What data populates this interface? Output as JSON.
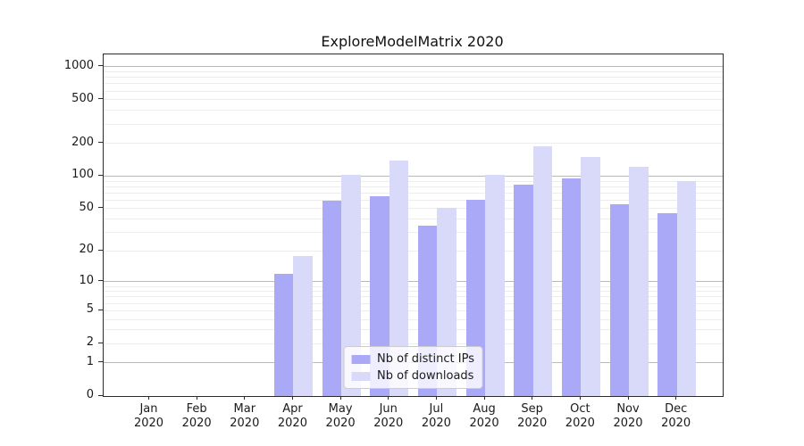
{
  "chart_data": {
    "type": "bar",
    "title": "ExploreModelMatrix 2020",
    "categories": [
      "Jan",
      "Feb",
      "Mar",
      "Apr",
      "May",
      "Jun",
      "Jul",
      "Aug",
      "Sep",
      "Oct",
      "Nov",
      "Dec"
    ],
    "category_year": "2020",
    "series": [
      {
        "name": "Nb of distinct IPs",
        "color": "#a9a9f7",
        "values": [
          0,
          0,
          0,
          12,
          59,
          65,
          35,
          60,
          83,
          95,
          55,
          45
        ]
      },
      {
        "name": "Nb of downloads",
        "color": "#d9d9f9",
        "values": [
          0,
          0,
          0,
          18,
          103,
          140,
          51,
          102,
          187,
          150,
          122,
          90
        ]
      }
    ],
    "y_ticks": [
      1000,
      500,
      200,
      100,
      50,
      20,
      10,
      5,
      2,
      1,
      0
    ],
    "y_scale": "log1p (log10 of value+1), 0 at baseline",
    "ylim": [
      0,
      1300
    ],
    "grid": "on",
    "legend_position": "lower center",
    "colors": {
      "grid_minor": "#ededed",
      "grid_major_power10": "#b9b9b9",
      "axis_spine": "#2b2b2b",
      "text": "#1a1a1a"
    }
  }
}
